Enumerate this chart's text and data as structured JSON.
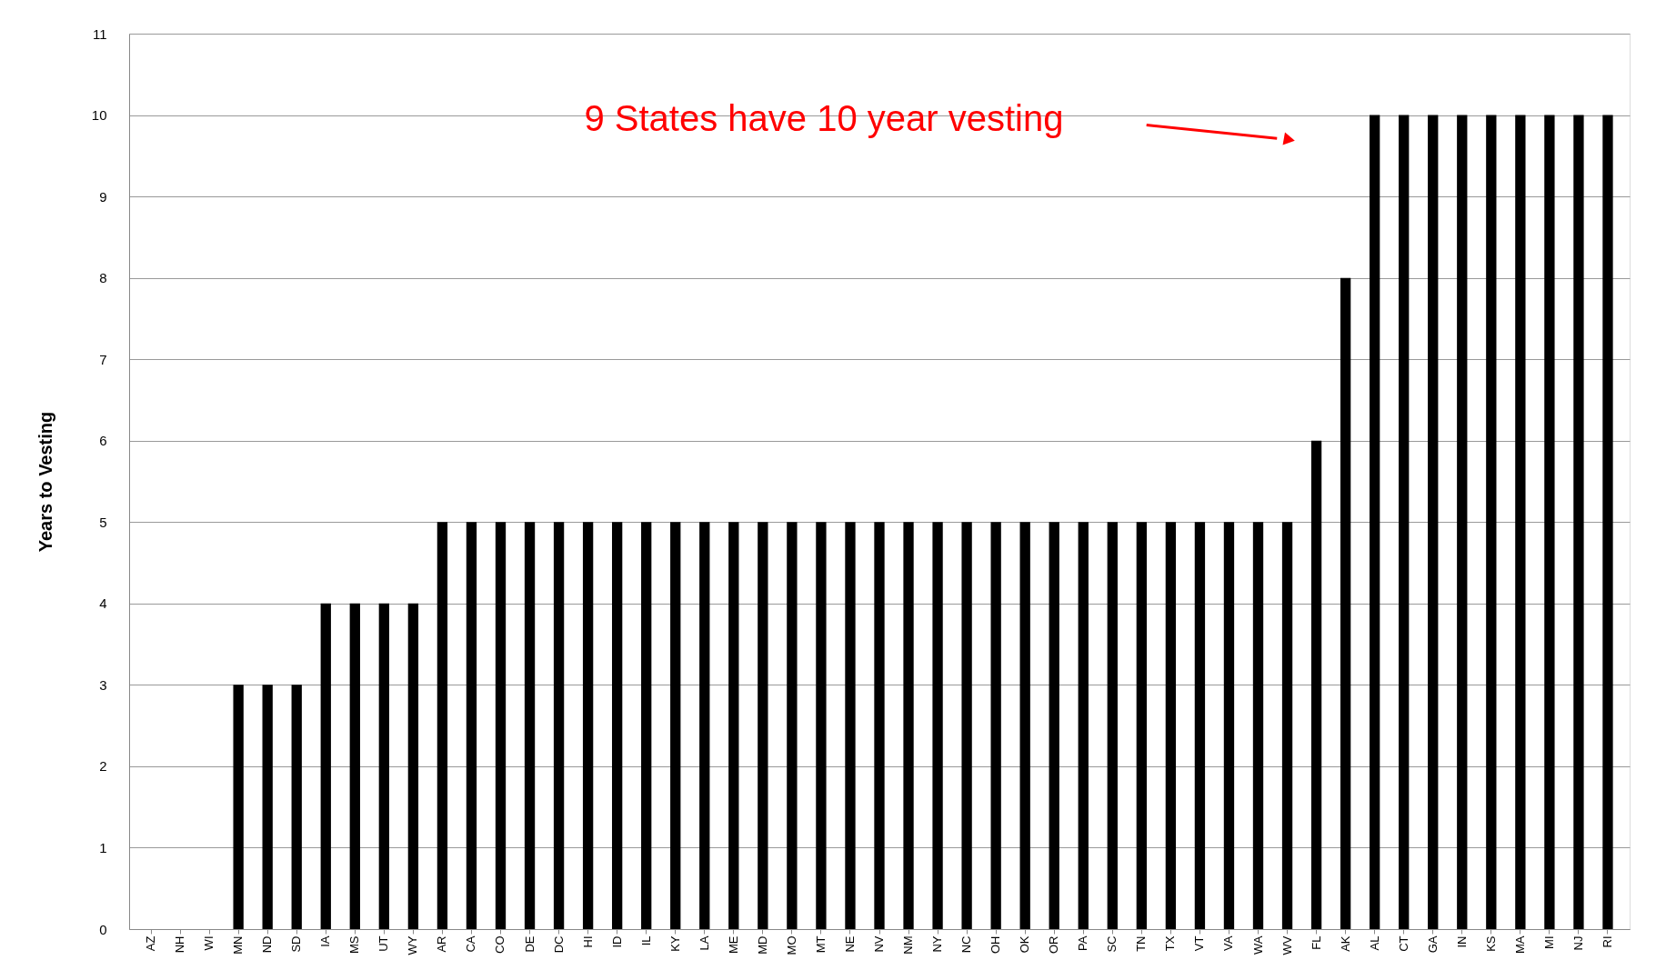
{
  "chart_data": {
    "type": "bar",
    "ylabel": "Years to Vesting",
    "categories": [
      "AZ",
      "NH",
      "WI",
      "MN",
      "ND",
      "SD",
      "IA",
      "MS",
      "UT",
      "WY",
      "AR",
      "CA",
      "CO",
      "DE",
      "DC",
      "HI",
      "ID",
      "IL",
      "KY",
      "LA",
      "ME",
      "MD",
      "MO",
      "MT",
      "NE",
      "NV",
      "NM",
      "NY",
      "NC",
      "OH",
      "OK",
      "OR",
      "PA",
      "SC",
      "TN",
      "TX",
      "VT",
      "VA",
      "WA",
      "WV",
      "FL",
      "AK",
      "AL",
      "CT",
      "GA",
      "IN",
      "KS",
      "MA",
      "MI",
      "NJ",
      "RI"
    ],
    "values": [
      0,
      0,
      0,
      3,
      3,
      3,
      4,
      4,
      4,
      4,
      5,
      5,
      5,
      5,
      5,
      5,
      5,
      5,
      5,
      5,
      5,
      5,
      5,
      5,
      5,
      5,
      5,
      5,
      5,
      5,
      5,
      5,
      5,
      5,
      5,
      5,
      5,
      5,
      5,
      5,
      6,
      8,
      10,
      10,
      10,
      10,
      10,
      10,
      10,
      10,
      10
    ],
    "color": "#000000",
    "ylim": [
      0,
      11
    ],
    "yticks": [
      0,
      1,
      2,
      3,
      4,
      5,
      6,
      7,
      8,
      9,
      10,
      11
    ],
    "grid": "y",
    "annotations": [
      "9 States have 10 year vesting"
    ]
  }
}
